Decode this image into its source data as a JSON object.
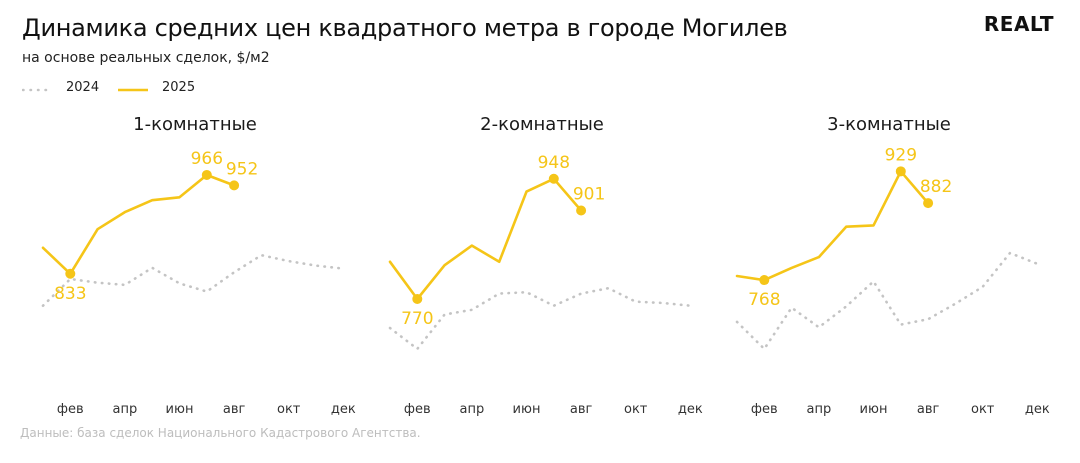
{
  "title": "Динамика средних цен квадратного метра в городе Могилев",
  "subtitle": "на основе реальных сделок, $/м2",
  "logo_text": "REALT",
  "legend": [
    {
      "name": "2024",
      "color": "#c4c4c4",
      "style": "dotted"
    },
    {
      "name": "2025",
      "color": "#f5c518",
      "style": "solid"
    }
  ],
  "source": "Данные: база сделок Национального Кадастрового Агентства.",
  "colors": {
    "y2024": "#c4c4c4",
    "y2025": "#f5c518",
    "label": "#f5c518"
  },
  "chart_data": [
    {
      "type": "line",
      "title": "1-комнатные",
      "x_tick_labels": [
        "фев",
        "апр",
        "июн",
        "авг",
        "окт",
        "дек"
      ],
      "x_tick_positions": [
        2,
        4,
        6,
        8,
        10,
        12
      ],
      "ylim": [
        690,
        1040
      ],
      "series": [
        {
          "name": "2024",
          "x": [
            1,
            2,
            3,
            4,
            5,
            6,
            7,
            8,
            9,
            10,
            11,
            12
          ],
          "values": [
            790,
            826,
            821,
            818,
            841,
            820,
            809,
            835,
            858,
            850,
            844,
            840
          ]
        },
        {
          "name": "2025",
          "x": [
            1,
            2,
            3,
            4,
            5,
            6,
            7,
            8
          ],
          "values": [
            868,
            833,
            893,
            916,
            932,
            936,
            966,
            952
          ]
        }
      ],
      "labeled_points": [
        {
          "x": 2,
          "value": 833,
          "text": "833",
          "pos": "below"
        },
        {
          "x": 7,
          "value": 966,
          "text": "966",
          "pos": "above"
        },
        {
          "x": 8,
          "value": 952,
          "text": "952",
          "pos": "above"
        }
      ]
    },
    {
      "type": "line",
      "title": "2-комнатные",
      "x_tick_labels": [
        "фев",
        "апр",
        "июн",
        "авг",
        "окт",
        "дек"
      ],
      "x_tick_positions": [
        2,
        4,
        6,
        8,
        10,
        12
      ],
      "ylim": [
        650,
        1035
      ],
      "series": [
        {
          "name": "2024",
          "x": [
            1,
            2,
            3,
            4,
            5,
            6,
            7,
            8,
            9,
            10,
            11,
            12
          ],
          "values": [
            727,
            696,
            747,
            754,
            778,
            780,
            760,
            778,
            786,
            766,
            764,
            760
          ]
        },
        {
          "name": "2025",
          "x": [
            1,
            2,
            3,
            4,
            5,
            6,
            7,
            8
          ],
          "values": [
            825,
            770,
            820,
            849,
            825,
            929,
            948,
            901
          ]
        }
      ],
      "labeled_points": [
        {
          "x": 2,
          "value": 770,
          "text": "770",
          "pos": "below"
        },
        {
          "x": 7,
          "value": 948,
          "text": "948",
          "pos": "above"
        },
        {
          "x": 8,
          "value": 901,
          "text": "901",
          "pos": "above"
        }
      ]
    },
    {
      "type": "line",
      "title": "3-комнатные",
      "x_tick_labels": [
        "фев",
        "апр",
        "июн",
        "авг",
        "окт",
        "дек"
      ],
      "x_tick_positions": [
        2,
        4,
        6,
        8,
        10,
        12
      ],
      "ylim": [
        620,
        1005
      ],
      "series": [
        {
          "name": "2024",
          "x": [
            1,
            2,
            3,
            4,
            5,
            6,
            7,
            8,
            9,
            10,
            11,
            12
          ],
          "values": [
            706,
            666,
            727,
            698,
            729,
            766,
            702,
            710,
            733,
            758,
            808,
            792
          ]
        },
        {
          "name": "2025",
          "x": [
            1,
            2,
            3,
            4,
            5,
            6,
            7,
            8
          ],
          "values": [
            774,
            768,
            786,
            802,
            847,
            849,
            929,
            882
          ]
        }
      ],
      "labeled_points": [
        {
          "x": 2,
          "value": 768,
          "text": "768",
          "pos": "below"
        },
        {
          "x": 7,
          "value": 929,
          "text": "929",
          "pos": "above"
        },
        {
          "x": 8,
          "value": 882,
          "text": "882",
          "pos": "above"
        }
      ]
    }
  ]
}
